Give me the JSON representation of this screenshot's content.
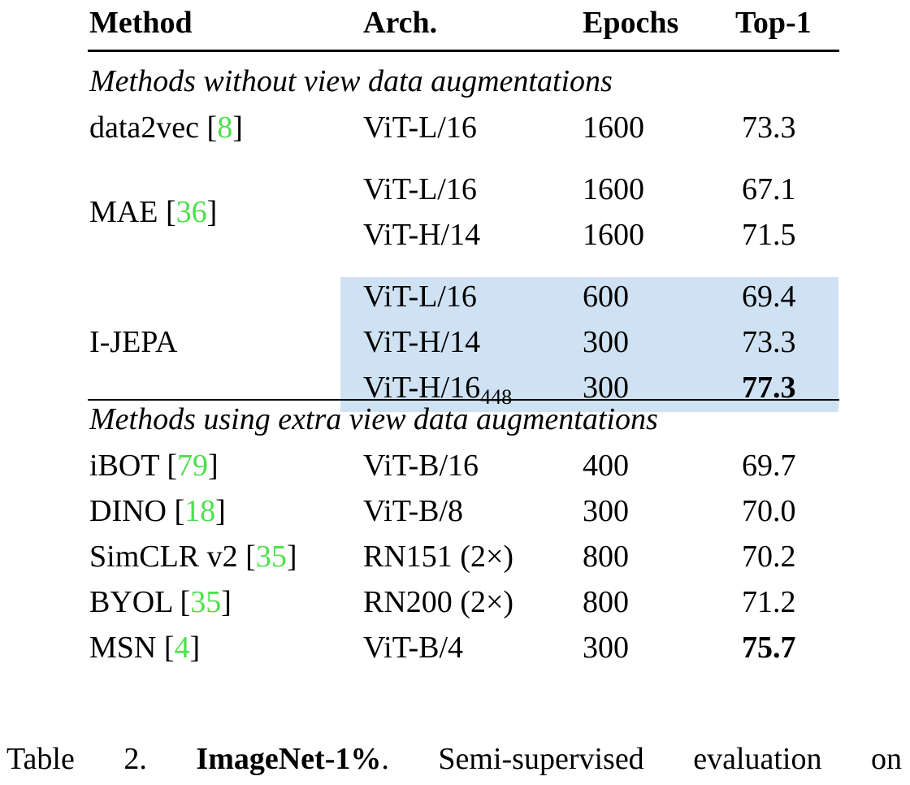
{
  "table": {
    "header": [
      "Method",
      "Arch.",
      "Epochs",
      "Top-1"
    ],
    "sections": [
      {
        "title": "Methods without view data augmentations",
        "groups": [
          {
            "method": [
              "data2vec [",
              "8",
              "]"
            ],
            "rows": [
              {
                "arch": [
                  "ViT-L/16"
                ],
                "epochs": "1600",
                "top1": "73.3"
              }
            ]
          },
          {
            "method": [
              "MAE [",
              "36",
              "]"
            ],
            "rows": [
              {
                "arch": [
                  "ViT-L/16"
                ],
                "epochs": "1600",
                "top1": "67.1"
              },
              {
                "arch": [
                  "ViT-H/14"
                ],
                "epochs": "1600",
                "top1": "71.5"
              }
            ]
          },
          {
            "method": [
              "I-JEPA"
            ],
            "highlight": true,
            "rows": [
              {
                "arch": [
                  "ViT-L/16"
                ],
                "epochs": "600",
                "top1": "69.4"
              },
              {
                "arch": [
                  "ViT-H/14"
                ],
                "epochs": "300",
                "top1": "73.3"
              },
              {
                "arch": [
                  "ViT-H/16",
                  "448"
                ],
                "epochs": "300",
                "top1": "77.3",
                "bold": true
              }
            ]
          }
        ]
      },
      {
        "title": "Methods using extra view data augmentations",
        "groups": [
          {
            "method": [
              "iBOT [",
              "79",
              "]"
            ],
            "rows": [
              {
                "arch": [
                  "ViT-B/16"
                ],
                "epochs": "400",
                "top1": "69.7"
              }
            ]
          },
          {
            "method": [
              "DINO [",
              "18",
              "]"
            ],
            "rows": [
              {
                "arch": [
                  "ViT-B/8"
                ],
                "epochs": "300",
                "top1": "70.0"
              }
            ]
          },
          {
            "method": [
              "SimCLR v2 [",
              "35",
              "]"
            ],
            "rows": [
              {
                "arch": [
                  "RN151 (2×)"
                ],
                "epochs": "800",
                "top1": "70.2"
              }
            ]
          },
          {
            "method": [
              "BYOL [",
              "35",
              "]"
            ],
            "rows": [
              {
                "arch": [
                  "RN200 (2×)"
                ],
                "epochs": "800",
                "top1": "71.2"
              }
            ]
          },
          {
            "method": [
              "MSN [",
              "4",
              "]"
            ],
            "rows": [
              {
                "arch": [
                  "ViT-B/4"
                ],
                "epochs": "300",
                "top1": "75.7",
                "bold": true
              }
            ]
          }
        ]
      }
    ]
  },
  "caption": {
    "label": "Table 2.",
    "title": "ImageNet-1%",
    "title_end": ".",
    "text": "Semi-supervised evaluation on"
  }
}
